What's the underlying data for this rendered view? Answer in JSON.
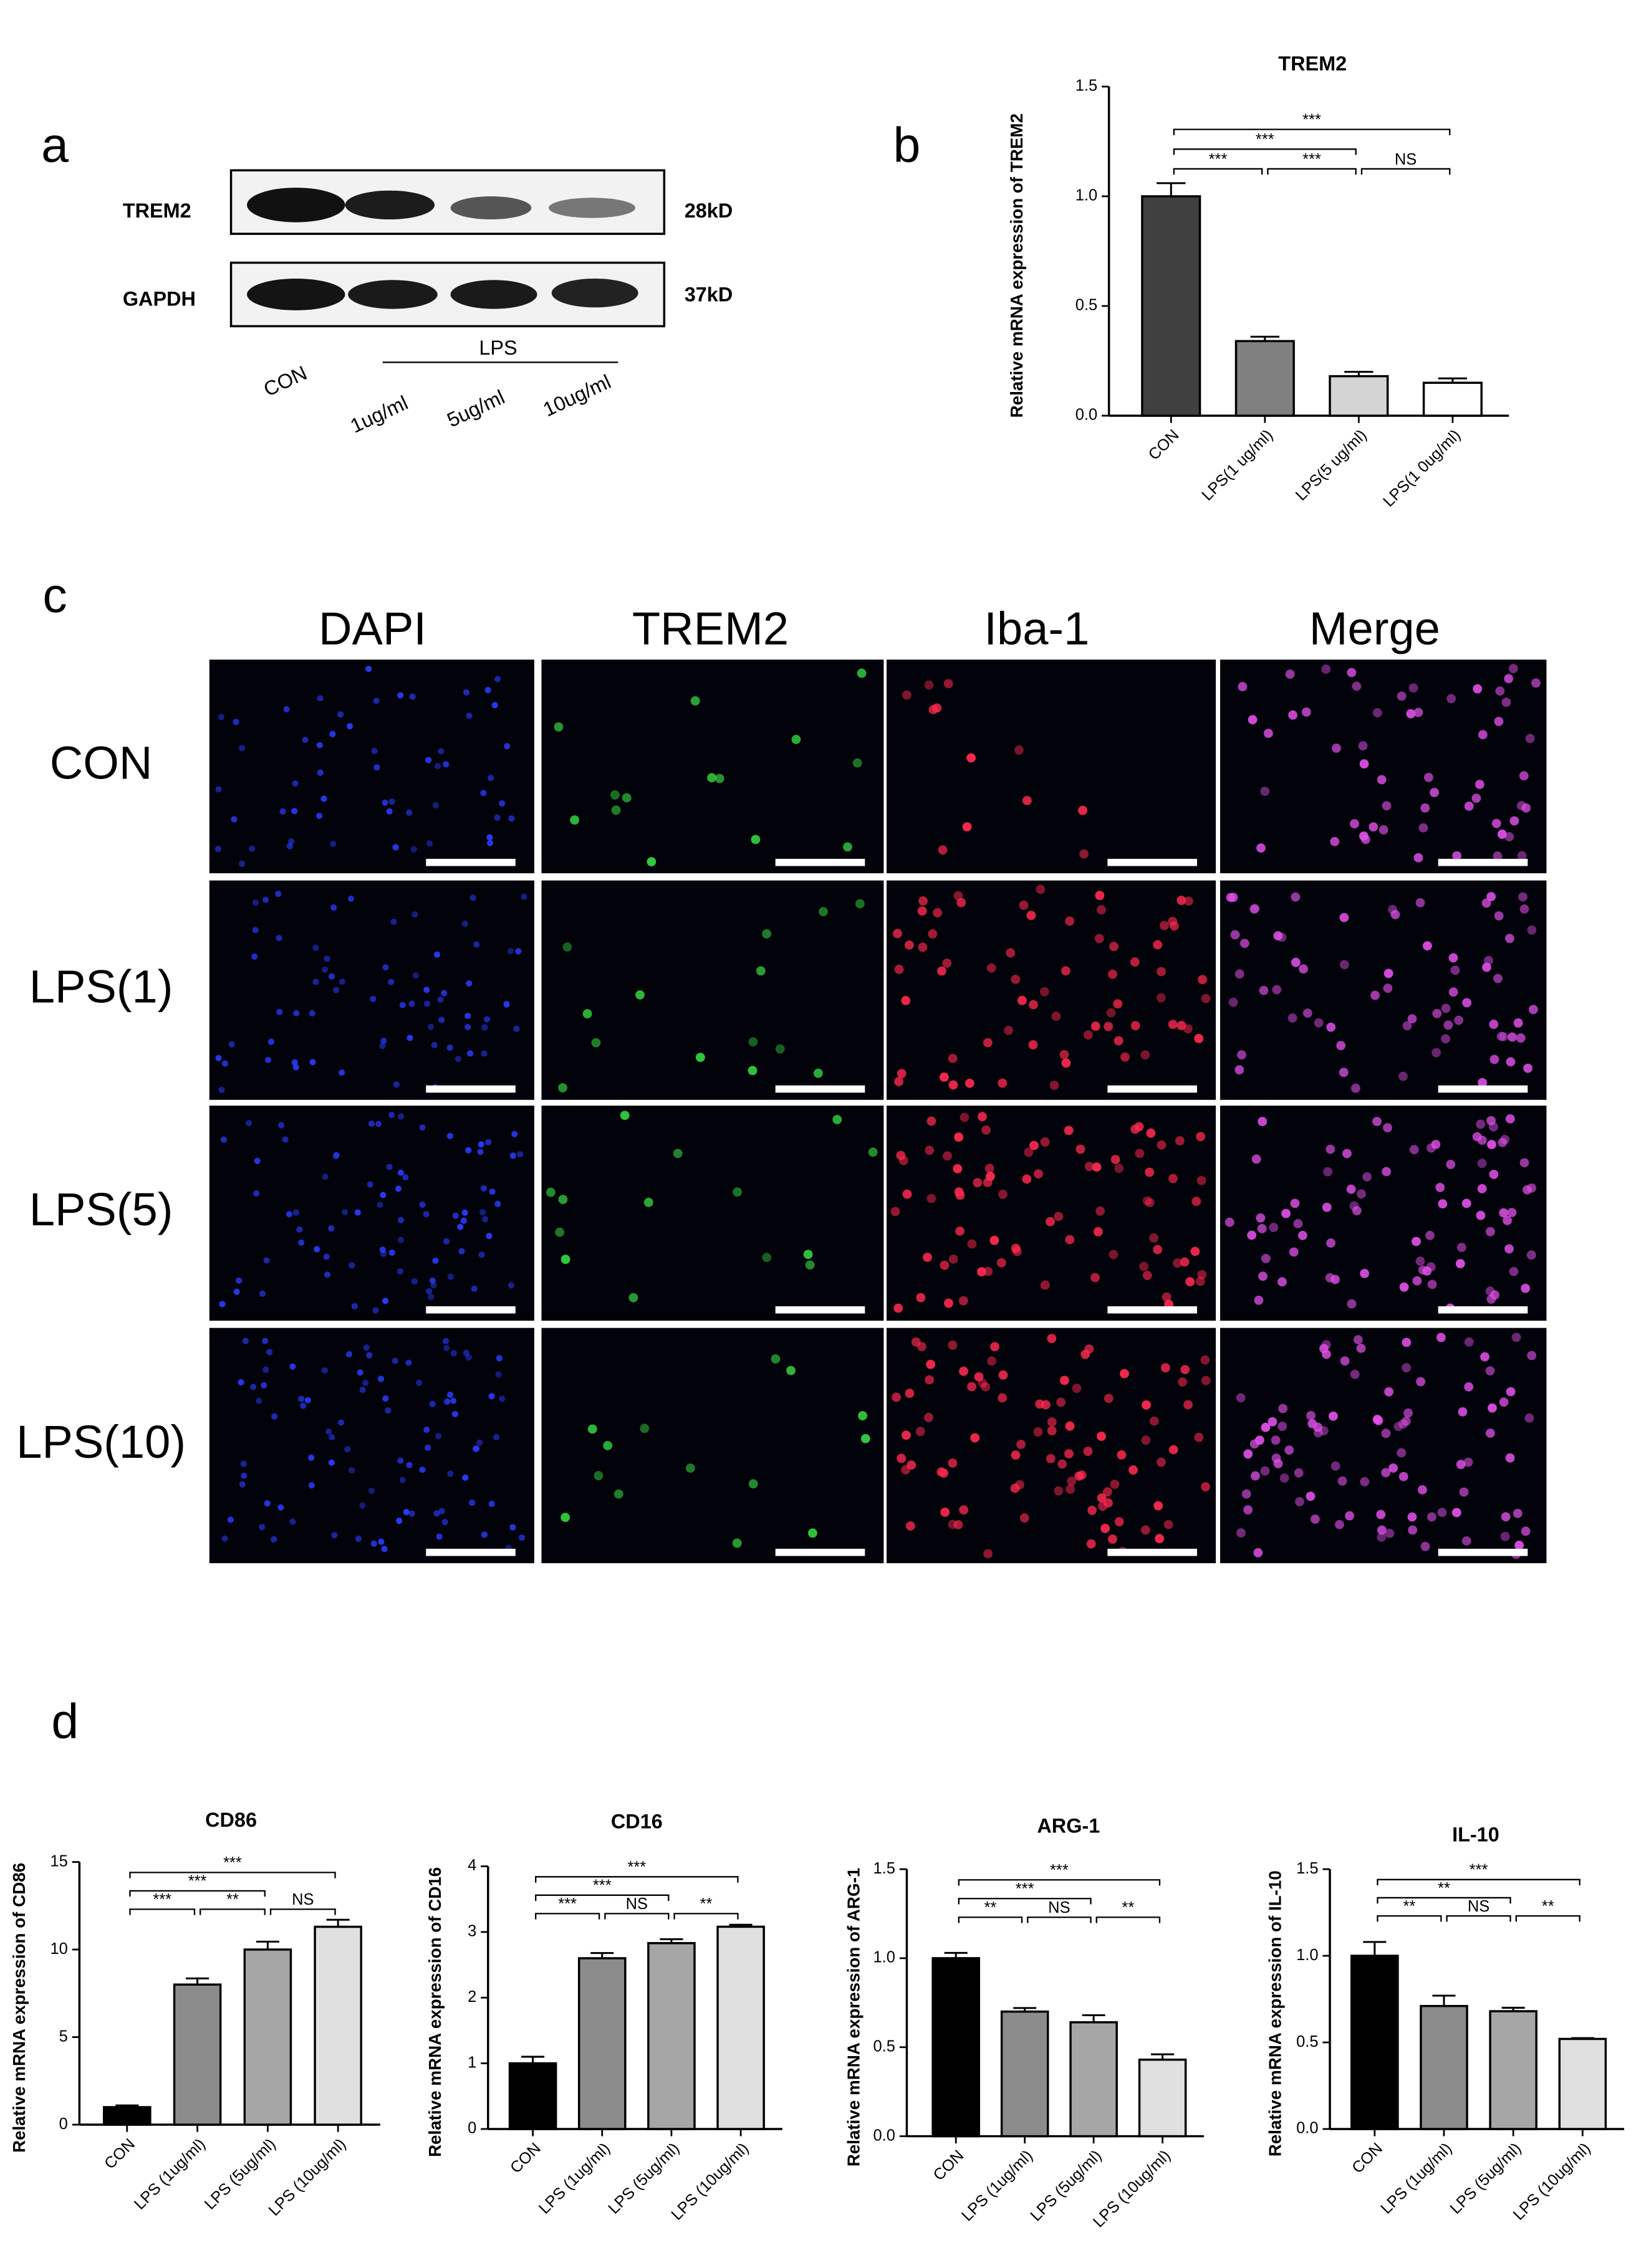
{
  "panel_labels": [
    "a",
    "b",
    "c",
    "d"
  ],
  "blot": {
    "proteins": [
      "TREM2",
      "GAPDH"
    ],
    "sizes": [
      "28kD",
      "37kD"
    ],
    "group": "LPS",
    "lanes": [
      "CON",
      "1ug/ml",
      "5ug/ml",
      "10ug/ml"
    ]
  },
  "microscopy": {
    "channels": [
      "DAPI",
      "TREM2",
      "Iba-1",
      "Merge"
    ],
    "conditions": [
      "CON",
      "LPS(1)",
      "LPS(5)",
      "LPS(10)"
    ]
  },
  "chart_data": [
    {
      "type": "bar",
      "title": "TREM2",
      "y_label": "Relative mRNA expression of  TREM2",
      "categories": [
        "CON",
        "LPS(1 ug/ml)",
        "LPS(5 ug/ml)",
        "LPS(1 0ug/ml)"
      ],
      "values": [
        1.0,
        0.34,
        0.18,
        0.15
      ],
      "errors": [
        0.06,
        0.02,
        0.02,
        0.02
      ],
      "colors": [
        "#404040",
        "#808080",
        "#d4d4d4",
        "#ffffff"
      ],
      "ylim": [
        0,
        1.5
      ],
      "yticks": [
        {
          "value": 0,
          "label": "0.0"
        },
        0.5,
        {
          "value": 1,
          "label": "1.0"
        },
        1.5
      ],
      "annotations": [
        {
          "label": "***",
          "from": "CON",
          "to": "LPS(1 0ug/ml)"
        },
        {
          "label": "***",
          "from": "CON",
          "to": "LPS(5 ug/ml)"
        },
        {
          "label": "***",
          "from": "CON",
          "to": "LPS(1 ug/ml)"
        },
        {
          "label": "***",
          "from": "LPS(1 ug/ml)",
          "to": "LPS(5 ug/ml)"
        },
        {
          "label": "NS",
          "from": "LPS(5 ug/ml)",
          "to": "LPS(1 0ug/ml)"
        }
      ]
    },
    {
      "type": "bar",
      "title": "CD86",
      "y_label": "Relative mRNA expression of CD86",
      "categories": [
        "CON",
        "LPS  (1ug/ml)",
        "LPS  (5ug/ml)",
        "LPS  (10ug/ml)"
      ],
      "values": [
        1.0,
        8.0,
        10.0,
        11.3
      ],
      "errors": [
        0.1,
        0.35,
        0.45,
        0.4
      ],
      "colors": [
        "#000000",
        "#8c8c8c",
        "#a6a6a6",
        "#e0e0e0"
      ],
      "ylim": [
        0,
        15
      ],
      "yticks": [
        0,
        5,
        10,
        15
      ],
      "annotations": [
        {
          "label": "***",
          "from": "CON",
          "to": "LPS  (10ug/ml)"
        },
        {
          "label": "***",
          "from": "CON",
          "to": "LPS  (5ug/ml)"
        },
        {
          "label": "***",
          "from": "CON",
          "to": "LPS  (1ug/ml)"
        },
        {
          "label": "**",
          "from": "LPS  (1ug/ml)",
          "to": "LPS  (5ug/ml)"
        },
        {
          "label": "NS",
          "from": "LPS  (5ug/ml)",
          "to": "LPS  (10ug/ml)"
        }
      ]
    },
    {
      "type": "bar",
      "title": "CD16",
      "y_label": "Relative mRNA expression of CD16",
      "categories": [
        "CON",
        "LPS  (1ug/ml)",
        "LPS  (5ug/ml)",
        "LPS  (10ug/ml)"
      ],
      "values": [
        1.0,
        2.6,
        2.83,
        3.08
      ],
      "errors": [
        0.1,
        0.08,
        0.06,
        0.03
      ],
      "colors": [
        "#000000",
        "#8c8c8c",
        "#a6a6a6",
        "#e0e0e0"
      ],
      "ylim": [
        0,
        4
      ],
      "yticks": [
        0,
        1,
        2,
        3,
        4
      ],
      "annotations": [
        {
          "label": "***",
          "from": "CON",
          "to": "LPS  (10ug/ml)"
        },
        {
          "label": "***",
          "from": "CON",
          "to": "LPS  (5ug/ml)"
        },
        {
          "label": "***",
          "from": "CON",
          "to": "LPS  (1ug/ml)"
        },
        {
          "label": "NS",
          "from": "LPS  (1ug/ml)",
          "to": "LPS  (5ug/ml)"
        },
        {
          "label": "**",
          "from": "LPS  (5ug/ml)",
          "to": "LPS  (10ug/ml)"
        }
      ]
    },
    {
      "type": "bar",
      "title": "ARG-1",
      "y_label": "Relative mRNA expression of  ARG-1",
      "categories": [
        "CON",
        "LPS  (1ug/ml)",
        "LPS  (5ug/ml)",
        "LPS  (10ug/ml)"
      ],
      "values": [
        1.0,
        0.7,
        0.64,
        0.43
      ],
      "errors": [
        0.03,
        0.02,
        0.04,
        0.03
      ],
      "colors": [
        "#000000",
        "#8c8c8c",
        "#a6a6a6",
        "#e0e0e0"
      ],
      "ylim": [
        0,
        1.5
      ],
      "yticks": [
        {
          "value": 0,
          "label": "0.0"
        },
        0.5,
        {
          "value": 1,
          "label": "1.0"
        },
        1.5
      ],
      "annotations": [
        {
          "label": "***",
          "from": "CON",
          "to": "LPS  (10ug/ml)"
        },
        {
          "label": "***",
          "from": "CON",
          "to": "LPS  (5ug/ml)"
        },
        {
          "label": "**",
          "from": "CON",
          "to": "LPS  (1ug/ml)"
        },
        {
          "label": "NS",
          "from": "LPS  (1ug/ml)",
          "to": "LPS  (5ug/ml)"
        },
        {
          "label": "**",
          "from": "LPS  (5ug/ml)",
          "to": "LPS  (10ug/ml)"
        }
      ]
    },
    {
      "type": "bar",
      "title": "IL-10",
      "y_label": "Relative mRNA expression of IL-10",
      "categories": [
        "CON",
        "LPS  (1ug/ml)",
        "LPS  (5ug/ml)",
        "LPS  (10ug/ml)"
      ],
      "values": [
        1.0,
        0.71,
        0.68,
        0.52
      ],
      "errors": [
        0.08,
        0.06,
        0.02,
        0.005
      ],
      "colors": [
        "#000000",
        "#8c8c8c",
        "#a6a6a6",
        "#e0e0e0"
      ],
      "ylim": [
        0,
        1.5
      ],
      "yticks": [
        {
          "value": 0,
          "label": "0.0"
        },
        0.5,
        {
          "value": 1,
          "label": "1.0"
        },
        1.5
      ],
      "annotations": [
        {
          "label": "***",
          "from": "CON",
          "to": "LPS  (10ug/ml)"
        },
        {
          "label": "**",
          "from": "CON",
          "to": "LPS  (5ug/ml)"
        },
        {
          "label": "**",
          "from": "CON",
          "to": "LPS  (1ug/ml)"
        },
        {
          "label": "NS",
          "from": "LPS  (1ug/ml)",
          "to": "LPS  (5ug/ml)"
        },
        {
          "label": "**",
          "from": "LPS  (5ug/ml)",
          "to": "LPS  (10ug/ml)"
        }
      ]
    }
  ]
}
